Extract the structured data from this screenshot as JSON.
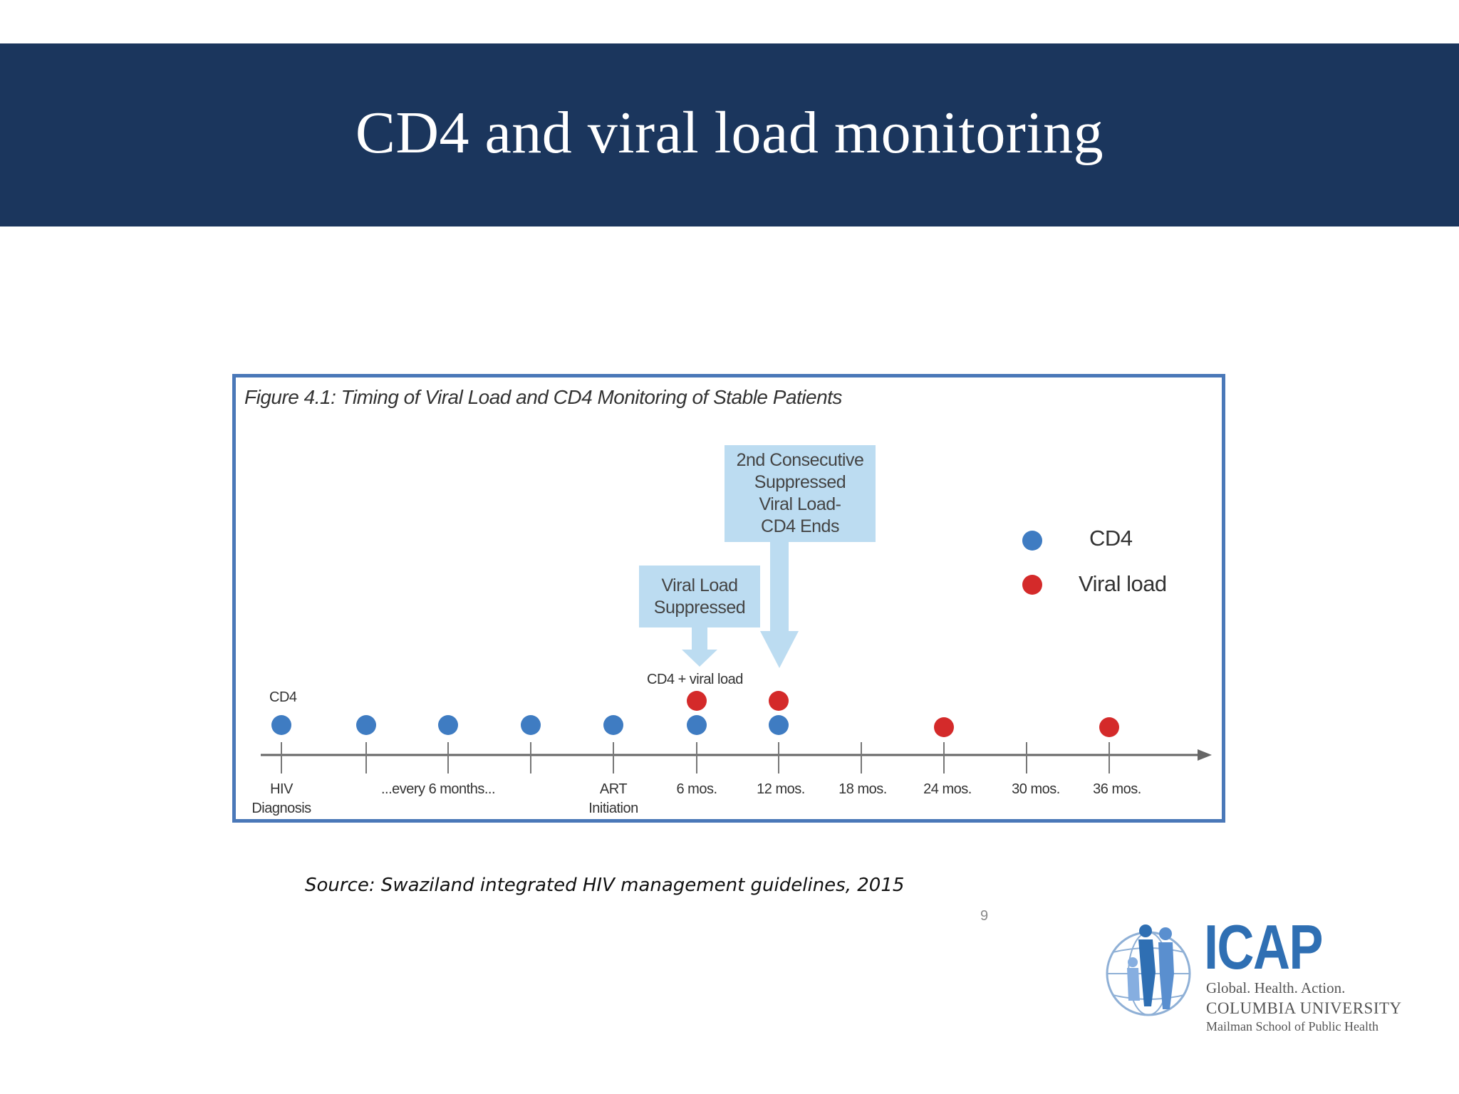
{
  "slide": {
    "title": "CD4 and viral load monitoring",
    "source": "Source: Swaziland integrated HIV management guidelines, 2015",
    "page_number": "9"
  },
  "figure": {
    "caption": "Figure 4.1: Timing of Viral Load and CD4 Monitoring of Stable Patients",
    "callouts": {
      "viral_load_suppressed": "Viral Load\nSuppressed",
      "second_consecutive": "2nd Consecutive\nSuppressed\nViral Load-\nCD4 Ends"
    },
    "annotations": {
      "cd4": "CD4",
      "cd4_viral_load": "CD4 + viral load"
    },
    "legend": {
      "cd4": "CD4",
      "viral_load": "Viral load"
    },
    "tick_labels": [
      "HIV\nDiagnosis",
      "...every 6 months...",
      "ART\nInitiation",
      "6 mos.",
      "12 mos.",
      "18 mos.",
      "24 mos.",
      "30 mos.",
      "36 mos."
    ],
    "colors": {
      "cd4": "#3f7cc2",
      "viral_load": "#d42a2a",
      "callout": "#bcdcf1",
      "axis": "#666666"
    },
    "timeline": {
      "cd4_events": [
        "HIV Diagnosis",
        "6-month interval",
        "6-month interval",
        "6-month interval",
        "ART Initiation",
        "6 mos.",
        "12 mos."
      ],
      "viral_load_events": [
        "6 mos.",
        "12 mos.",
        "24 mos.",
        "36 mos."
      ]
    }
  },
  "logo": {
    "name": "ICAP",
    "tagline": "Global. Health. Action.",
    "university": "COLUMBIA UNIVERSITY",
    "school": "Mailman School of Public Health"
  }
}
